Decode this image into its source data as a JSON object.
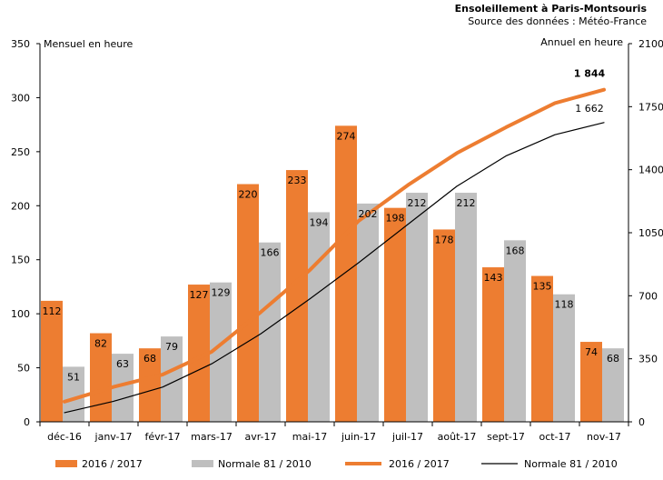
{
  "chart_data": {
    "type": "bar",
    "title": "Ensoleillement à Paris-Montsouris",
    "subtitle": "Source des données : Météo-France",
    "categories": [
      "déc-16",
      "janv-17",
      "févr-17",
      "mars-17",
      "avr-17",
      "mai-17",
      "juin-17",
      "juil-17",
      "août-17",
      "sept-17",
      "oct-17",
      "nov-17"
    ],
    "series": [
      {
        "name": "2016 / 2017",
        "kind": "bar",
        "axis": "left",
        "color": "#ed7d31",
        "values": [
          112,
          82,
          68,
          127,
          220,
          233,
          274,
          198,
          178,
          143,
          135,
          74
        ]
      },
      {
        "name": "Normale 81 / 2010",
        "kind": "bar",
        "axis": "left",
        "color": "#bfbfbf",
        "values": [
          51,
          63,
          79,
          129,
          166,
          194,
          202,
          212,
          212,
          168,
          118,
          68
        ]
      },
      {
        "name": "2016 / 2017",
        "kind": "line",
        "axis": "right",
        "color": "#ed7d31",
        "values": [
          112,
          194,
          262,
          389,
          609,
          842,
          1116,
          1314,
          1492,
          1635,
          1770,
          1844
        ]
      },
      {
        "name": "Normale 81 / 2010",
        "kind": "line",
        "axis": "right",
        "color": "#000000",
        "values": [
          51,
          114,
          193,
          322,
          488,
          682,
          884,
          1096,
          1308,
          1476,
          1594,
          1662
        ]
      }
    ],
    "end_labels": [
      "1 844",
      "1 662"
    ],
    "ylabel_left": "Mensuel en heure",
    "ylabel_right": "Annuel en heure",
    "ylim_left": [
      0,
      350
    ],
    "yticks_left": [
      "0",
      "50",
      "100",
      "150",
      "200",
      "250",
      "300",
      "350"
    ],
    "ylim_right": [
      0,
      2100
    ],
    "yticks_right": [
      "0",
      "350",
      "700",
      "1050",
      "1400",
      "1750",
      "2100"
    ],
    "grid": false,
    "legend_position": "bottom"
  }
}
